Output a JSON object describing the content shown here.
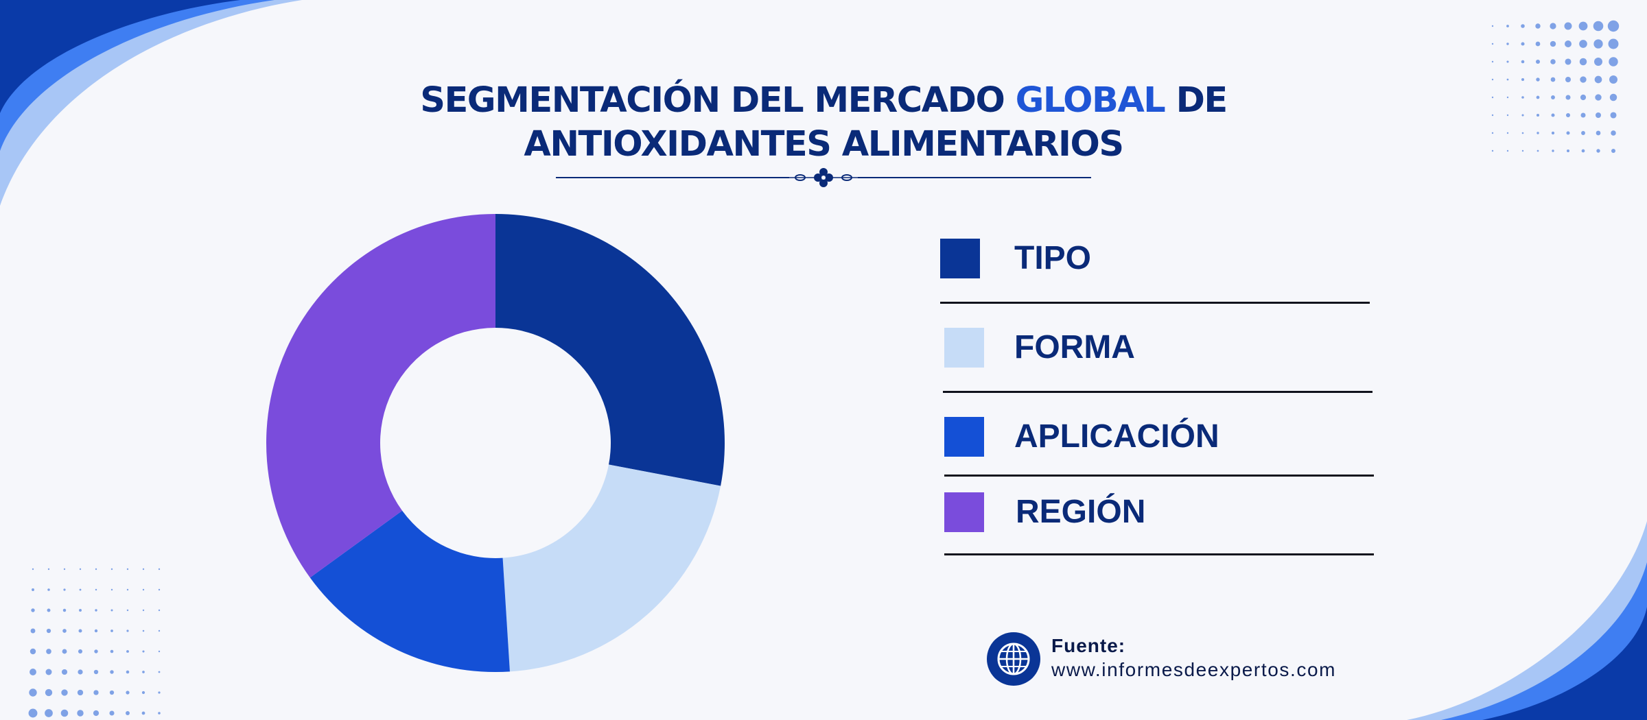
{
  "header": {
    "title_line1_prefix": "SEGMENTACIÓN DEL MERCADO ",
    "title_line1_highlight": "GLOBAL",
    "title_line1_suffix": " DE",
    "title_line2": "ANTIOXIDANTES ALIMENTARIOS"
  },
  "chart_data": {
    "type": "pie",
    "title": "SEGMENTACIÓN DEL MERCADO GLOBAL DE ANTIOXIDANTES ALIMENTARIOS",
    "categories": [
      "TIPO",
      "FORMA",
      "APLICACIÓN",
      "REGIÓN"
    ],
    "values": [
      28,
      21,
      16,
      35
    ],
    "colors": [
      "#0a3596",
      "#c6dcf7",
      "#1450d6",
      "#7a4cdc"
    ],
    "donut": true,
    "legend": "right",
    "start_angle": "12 o'clock",
    "direction": "clockwise"
  },
  "source": {
    "label": "Fuente:",
    "url": "www.informesdeexpertos.com",
    "icon": "globe-icon"
  },
  "theme": {
    "title_color": "#0a2a78",
    "accent_color": "#1f55d6",
    "wave_dark": "#0a3aa8",
    "wave_mid": "#3f7ef2",
    "wave_light": "#a8c6f6"
  }
}
